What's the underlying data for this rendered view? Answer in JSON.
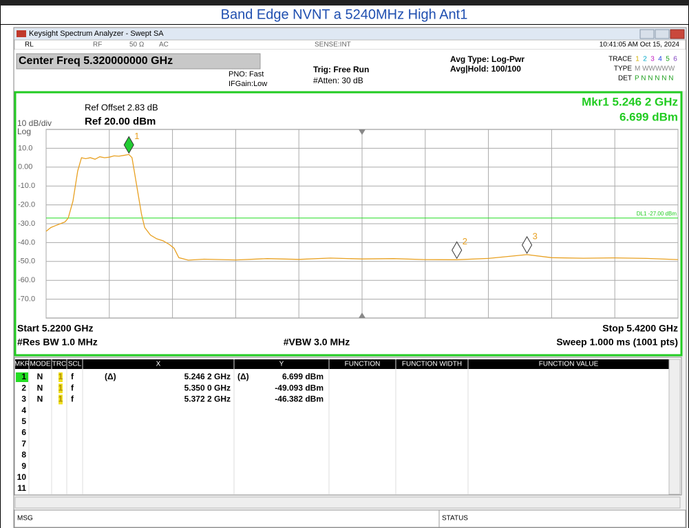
{
  "title": "Band Edge NVNT a 5240MHz High Ant1",
  "window": {
    "title": "Keysight Spectrum Analyzer - Swept SA"
  },
  "status_row": {
    "rl": "RL",
    "rf": "RF",
    "impedance": "50 Ω",
    "coupling": "AC",
    "sense": "SENSE:INT",
    "datetime": "10:41:05 AM Oct 15, 2024"
  },
  "settings": {
    "center_freq": "Center Freq 5.320000000 GHz",
    "pno": "PNO: Fast",
    "ifgain": "IFGain:Low",
    "trig": "Trig: Free Run",
    "atten": "#Atten: 30 dB",
    "avg_type": "Avg Type: Log-Pwr",
    "avg_hold": "Avg|Hold: 100/100",
    "trace_label": "TRACE",
    "trace_nums": [
      "1",
      "2",
      "3",
      "4",
      "5",
      "6"
    ],
    "type_label": "TYPE",
    "type_value": "M WWWWW",
    "det_label": "DET",
    "det_value": "P N N N N N"
  },
  "chart_data": {
    "type": "line",
    "ref_offset": "Ref Offset 2.83 dB",
    "scale": "10 dB/div",
    "ref_level": "Ref 20.00 dBm",
    "log": "Log",
    "marker_readout": [
      "Mkr1 5.246 2 GHz",
      "6.699 dBm"
    ],
    "xlim": [
      5.22,
      5.42
    ],
    "ylim": [
      -80,
      20
    ],
    "xticks": [
      5.22,
      5.24,
      5.26,
      5.28,
      5.3,
      5.32,
      5.34,
      5.36,
      5.38,
      5.4,
      5.42
    ],
    "yticks": [
      {
        "value": 10,
        "label": "10.0"
      },
      {
        "value": 0,
        "label": "0.00"
      },
      {
        "value": -10,
        "label": "-10.0"
      },
      {
        "value": -20,
        "label": "-20.0"
      },
      {
        "value": -30,
        "label": "-30.0"
      },
      {
        "value": -40,
        "label": "-40.0"
      },
      {
        "value": -50,
        "label": "-50.0"
      },
      {
        "value": -60,
        "label": "-60.0"
      },
      {
        "value": -70,
        "label": "-70.0"
      }
    ],
    "grid": true,
    "display_line": {
      "value": -27,
      "label": "DL1 -27.00 dBm"
    },
    "color": "#e8a020",
    "x": [
      5.22,
      5.2215,
      5.223,
      5.2245,
      5.226,
      5.227,
      5.2285,
      5.23,
      5.2312,
      5.2325,
      5.234,
      5.2355,
      5.237,
      5.2385,
      5.24,
      5.2415,
      5.243,
      5.2445,
      5.2462,
      5.2472,
      5.2482,
      5.2492,
      5.2502,
      5.2512,
      5.253,
      5.255,
      5.257,
      5.259,
      5.2605,
      5.262,
      5.265,
      5.27,
      5.28,
      5.29,
      5.3,
      5.31,
      5.32,
      5.33,
      5.34,
      5.35,
      5.36,
      5.3722,
      5.38,
      5.39,
      5.4,
      5.41,
      5.42
    ],
    "values": [
      -34,
      -32,
      -31,
      -30,
      -29,
      -27,
      -18,
      -2,
      5,
      4.5,
      5,
      4.2,
      5.5,
      5,
      5.3,
      6,
      5.8,
      6.2,
      6.699,
      5,
      -5,
      -15,
      -25,
      -32,
      -36,
      -38,
      -39,
      -41,
      -43,
      -48,
      -49.3,
      -48.8,
      -49.2,
      -48.5,
      -48.9,
      -48.2,
      -48.7,
      -48.5,
      -49,
      -49.093,
      -48.4,
      -46.382,
      -48,
      -48.3,
      -48.1,
      -48.4,
      -49
    ],
    "markers": [
      {
        "label": "1",
        "x": 5.2462,
        "y": 6.699,
        "color": "#22cc33"
      },
      {
        "label": "2",
        "x": 5.35,
        "y": -49.093,
        "color": "#ffffff"
      },
      {
        "label": "3",
        "x": 5.3722,
        "y": -46.382,
        "color": "#ffffff"
      }
    ],
    "start": "Start 5.2200 GHz",
    "stop": "Stop 5.4200 GHz",
    "rbw": "#Res BW 1.0 MHz",
    "vbw": "#VBW 3.0 MHz",
    "sweep": "Sweep  1.000 ms (1001 pts)"
  },
  "marker_table": {
    "headers": [
      "MKR",
      "MODE",
      "TRC",
      "SCL",
      "X",
      "Y",
      "FUNCTION",
      "FUNCTION WIDTH",
      "FUNCTION VALUE"
    ],
    "rows": [
      [
        "1",
        "N",
        "1",
        "f",
        "(Δ)",
        "5.246 2 GHz",
        "(Δ)",
        "6.699 dBm"
      ],
      [
        "2",
        "N",
        "1",
        "f",
        "",
        "5.350 0 GHz",
        "",
        "-49.093 dBm"
      ],
      [
        "3",
        "N",
        "1",
        "f",
        "",
        "5.372 2 GHz",
        "",
        "-46.382 dBm"
      ],
      [
        "4"
      ],
      [
        "5"
      ],
      [
        "6"
      ],
      [
        "7"
      ],
      [
        "8"
      ],
      [
        "9"
      ],
      [
        "10"
      ],
      [
        "11"
      ]
    ]
  },
  "status_bar": {
    "msg": "MSG",
    "status": "STATUS"
  }
}
